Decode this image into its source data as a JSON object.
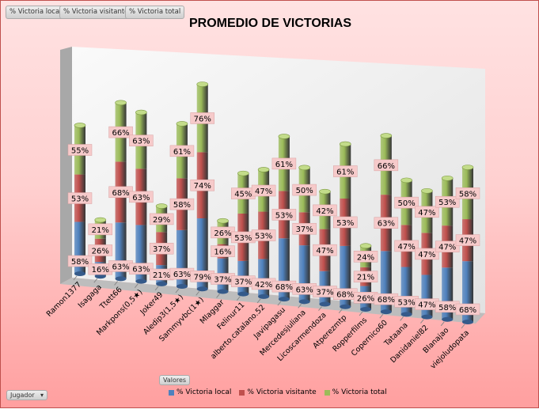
{
  "filter_buttons": [
    "% Victoria local",
    "% Victoria visitante",
    "% Victoria total"
  ],
  "valores_label": "Valores",
  "jugador_label": "Jugador",
  "chart_data": {
    "type": "bar",
    "stacked": true,
    "style": "3d-cylinder",
    "title": "PROMEDIO DE VICTORIAS",
    "categories": [
      "Ramon1377",
      "Isagaga",
      "Ttett66",
      "Markpons(0,5★)",
      "Joker49",
      "Aledip3(1,5★)",
      "Sammyvbc(1★)",
      "Mlaggar",
      "Felinur11",
      "alberto.catalano.52",
      "Javipagasu",
      "Mercedesjuliana",
      "Licoscarmendoza",
      "Atperezmtp",
      "Ropperfilms",
      "Copernico60",
      "Tataana",
      "Danidaniel82",
      "Blanajao",
      "viejoludopata"
    ],
    "series": [
      {
        "name": "% Victoria local",
        "color": "#4f81bd",
        "values": [
          58,
          16,
          63,
          63,
          21,
          63,
          79,
          37,
          37,
          42,
          68,
          63,
          37,
          68,
          26,
          68,
          53,
          47,
          58,
          68
        ]
      },
      {
        "name": "% Victoria visitante",
        "color": "#c0504d",
        "values": [
          53,
          26,
          68,
          63,
          37,
          58,
          74,
          16,
          53,
          53,
          53,
          37,
          47,
          53,
          21,
          63,
          47,
          47,
          47,
          47
        ]
      },
      {
        "name": "% Victoria total",
        "color": "#9bbb59",
        "values": [
          55,
          21,
          66,
          63,
          29,
          61,
          76,
          26,
          45,
          47,
          61,
          50,
          42,
          61,
          24,
          66,
          50,
          47,
          53,
          58
        ]
      }
    ],
    "value_format": "percent",
    "legend": "bottom"
  }
}
